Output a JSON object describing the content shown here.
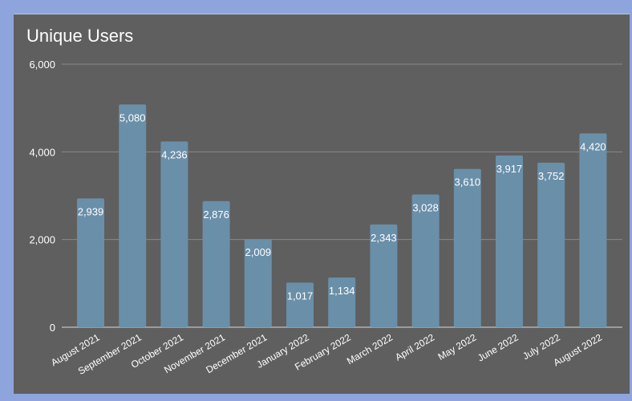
{
  "chart_data": {
    "type": "bar",
    "title": "Unique Users",
    "xlabel": "",
    "ylabel": "",
    "categories": [
      "August 2021",
      "September 2021",
      "October 2021",
      "November 2021",
      "December 2021",
      "January 2022",
      "February 2022",
      "March 2022",
      "April 2022",
      "May 2022",
      "June 2022",
      "July 2022",
      "August 2022"
    ],
    "values": [
      2939,
      5080,
      4236,
      2876,
      2009,
      1017,
      1134,
      2343,
      3028,
      3610,
      3917,
      3752,
      4420
    ],
    "data_labels": [
      "2,939",
      "5,080",
      "4,236",
      "2,876",
      "2,009",
      "1,017",
      "1,134",
      "2,343",
      "3,028",
      "3,610",
      "3,917",
      "3,752",
      "4,420"
    ],
    "yticks": [
      0,
      2000,
      4000,
      6000
    ],
    "ytick_labels": [
      "0",
      "2,000",
      "4,000",
      "6,000"
    ],
    "ylim": [
      0,
      6000
    ],
    "grid": true,
    "legend": "none",
    "colors": {
      "background": "#5f5f5f",
      "page_border": "#8ea4dc",
      "bar": "#6a8fa9",
      "grid": "#8a8a8a",
      "text": "#ffffff"
    }
  }
}
